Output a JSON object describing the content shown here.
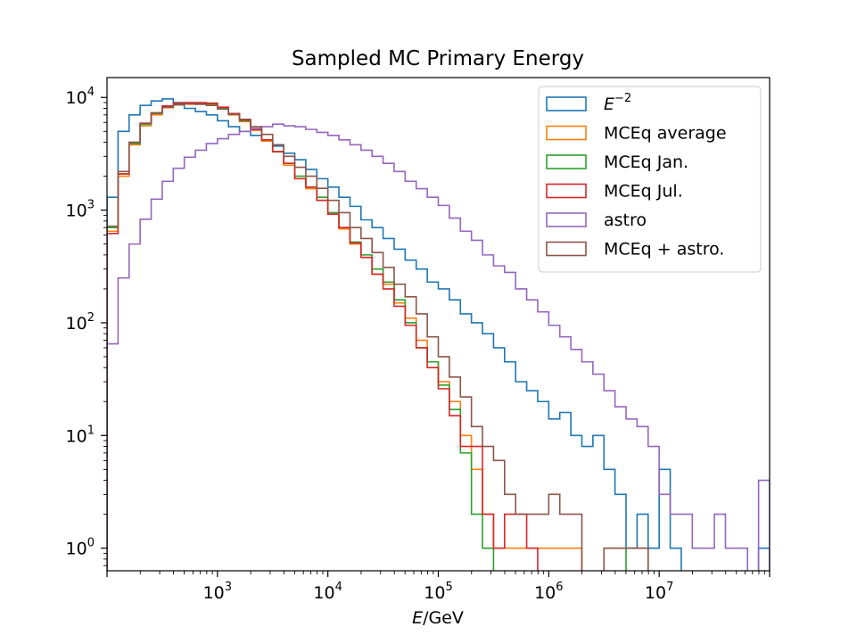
{
  "chart_data": {
    "type": "histogram",
    "title": "Sampled MC Primary Energy",
    "xlabel_italic": "E",
    "xlabel_rest": "/GeV",
    "ylabel": "",
    "x_scale": "log",
    "y_scale": "log",
    "xlim": [
      100,
      100000000
    ],
    "ylim": [
      0.63,
      15000
    ],
    "grid": false,
    "legend_placement": "top-right",
    "x_ticks": [
      {
        "base": "10",
        "exp": "3",
        "value": 1000
      },
      {
        "base": "10",
        "exp": "4",
        "value": 10000
      },
      {
        "base": "10",
        "exp": "5",
        "value": 100000
      },
      {
        "base": "10",
        "exp": "6",
        "value": 1000000
      },
      {
        "base": "10",
        "exp": "7",
        "value": 10000000
      }
    ],
    "y_ticks": [
      {
        "base": "10",
        "exp": "0",
        "value": 1
      },
      {
        "base": "10",
        "exp": "1",
        "value": 10
      },
      {
        "base": "10",
        "exp": "2",
        "value": 100
      },
      {
        "base": "10",
        "exp": "3",
        "value": 1000
      },
      {
        "base": "10",
        "exp": "4",
        "value": 10000
      }
    ],
    "bins": {
      "log10_start": 2.0,
      "log10_step": 0.1,
      "count": 60
    },
    "series": [
      {
        "label_base": "E",
        "label_exp": "−2",
        "italic_base": true,
        "color": "#1f77b4",
        "values": [
          1300,
          5000,
          7000,
          8500,
          9300,
          9700,
          9000,
          8000,
          7500,
          7000,
          6200,
          5500,
          5000,
          4600,
          4200,
          3700,
          3200,
          2800,
          2300,
          1900,
          1600,
          1300,
          1080,
          820,
          700,
          560,
          450,
          360,
          300,
          230,
          200,
          160,
          120,
          100,
          80,
          60,
          45,
          30,
          25,
          20,
          14,
          16,
          10,
          8,
          10,
          5,
          3,
          1,
          2,
          1,
          5,
          1,
          null,
          null,
          null,
          null,
          null,
          null,
          null,
          1
        ]
      },
      {
        "label": "MCEq average",
        "color": "#ff7f0e",
        "values": [
          650,
          2000,
          3800,
          5600,
          7000,
          8100,
          8600,
          8700,
          8800,
          8700,
          8000,
          7000,
          6100,
          5100,
          4100,
          3300,
          2500,
          1900,
          1550,
          1220,
          920,
          680,
          500,
          380,
          270,
          220,
          150,
          110,
          70,
          45,
          30,
          20,
          10,
          5,
          2,
          1,
          1,
          1,
          1,
          1,
          1,
          1,
          1,
          null,
          null,
          null,
          null,
          null,
          null,
          null,
          null,
          null,
          null,
          null,
          null,
          null,
          null,
          null,
          null,
          null
        ]
      },
      {
        "label": "MCEq Jan.",
        "color": "#2ca02c",
        "values": [
          700,
          2100,
          3900,
          5800,
          7200,
          8300,
          8700,
          8800,
          8900,
          8800,
          8100,
          7100,
          6200,
          5200,
          4200,
          3300,
          2600,
          2000,
          1600,
          1300,
          950,
          700,
          520,
          400,
          300,
          230,
          160,
          100,
          60,
          45,
          28,
          17,
          7,
          2,
          1,
          null,
          null,
          null,
          null,
          null,
          null,
          null,
          null,
          null,
          null,
          null,
          null,
          1,
          1,
          null,
          null,
          null,
          null,
          null,
          null,
          null,
          null,
          null,
          null,
          null
        ]
      },
      {
        "label": "MCEq Jul.",
        "color": "#d62728",
        "values": [
          620,
          2100,
          4000,
          5900,
          7300,
          8400,
          8900,
          9000,
          9000,
          8900,
          8200,
          7200,
          6300,
          5200,
          4200,
          3300,
          2600,
          1900,
          1600,
          1220,
          920,
          700,
          510,
          380,
          270,
          200,
          140,
          95,
          60,
          40,
          26,
          15,
          8,
          8,
          2,
          1,
          2,
          2,
          1,
          null,
          null,
          null,
          null,
          null,
          null,
          null,
          null,
          null,
          null,
          null,
          null,
          null,
          null,
          null,
          null,
          null,
          null,
          null,
          null,
          null
        ]
      },
      {
        "label": "astro",
        "color": "#9467bd",
        "values": [
          65,
          250,
          500,
          830,
          1250,
          1800,
          2350,
          2950,
          3400,
          3900,
          4300,
          4700,
          5000,
          5300,
          5500,
          5800,
          5600,
          5500,
          5200,
          4900,
          4600,
          4200,
          3800,
          3400,
          3000,
          2600,
          2200,
          1800,
          1550,
          1300,
          1100,
          850,
          650,
          540,
          400,
          320,
          280,
          200,
          160,
          125,
          95,
          75,
          58,
          45,
          35,
          25,
          18,
          14,
          12,
          8,
          3,
          2,
          2,
          1,
          1,
          2,
          1,
          1,
          null,
          4
        ]
      },
      {
        "label": "MCEq + astro.",
        "color": "#8c564b",
        "values": [
          720,
          2200,
          4000,
          5900,
          7300,
          8200,
          8600,
          8800,
          8700,
          8500,
          7900,
          7100,
          6400,
          5500,
          4700,
          3800,
          3000,
          2400,
          2000,
          1560,
          1220,
          950,
          700,
          560,
          420,
          310,
          220,
          170,
          120,
          75,
          50,
          33,
          22,
          12,
          8,
          6,
          3,
          2,
          2,
          2,
          3,
          2,
          2,
          null,
          null,
          1,
          1,
          1,
          1,
          null,
          null,
          null,
          null,
          null,
          null,
          null,
          null,
          null,
          null,
          null
        ]
      }
    ]
  }
}
